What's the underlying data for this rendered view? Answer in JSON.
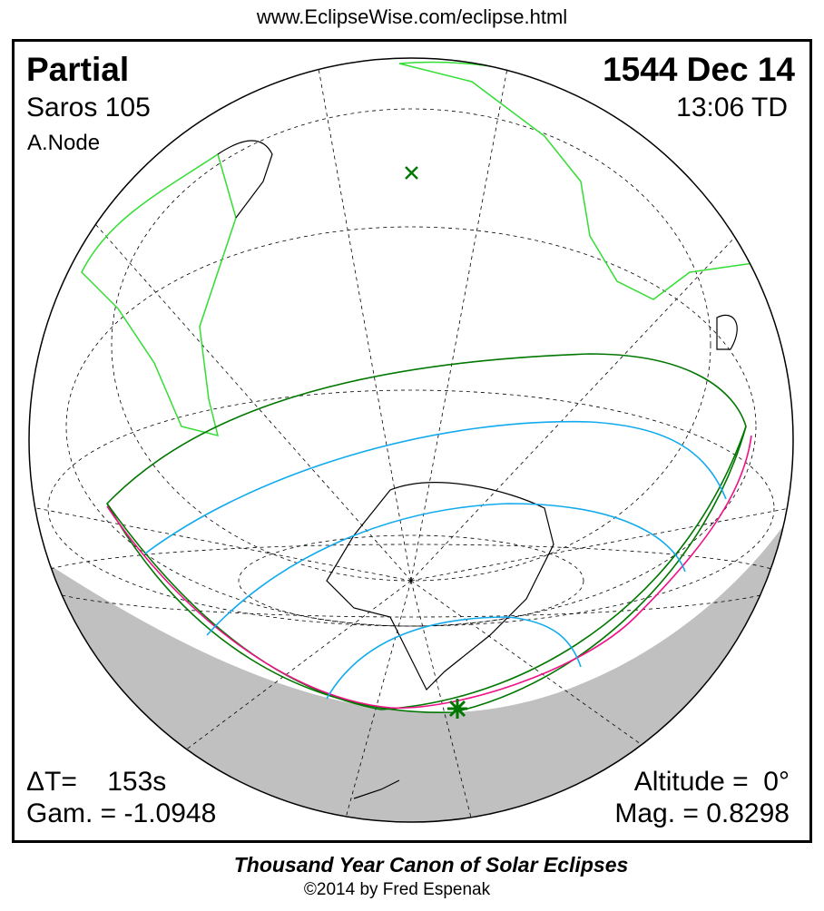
{
  "header": {
    "url": "www.EclipseWise.com/eclipse.html"
  },
  "eclipse": {
    "type": "Partial",
    "date": "1544 Dec 14",
    "saros": "Saros 105",
    "time": "13:06 TD",
    "node": "A.Node",
    "delta_t": "ΔT=    153s",
    "gamma": "Gam. = -1.0948",
    "altitude": "Altitude =  0°",
    "magnitude": "Mag. = 0.8298"
  },
  "colors": {
    "coastline": "#33dd33",
    "penumbra_limits": "#007700",
    "max_eclipse_line": "#ee1188",
    "magnitude_curves": "#11aaee",
    "night_shade": "#c0c0c0"
  },
  "footer": {
    "title": "Thousand Year Canon of Solar Eclipses",
    "copyright": "©2014 by Fred Espenak"
  }
}
